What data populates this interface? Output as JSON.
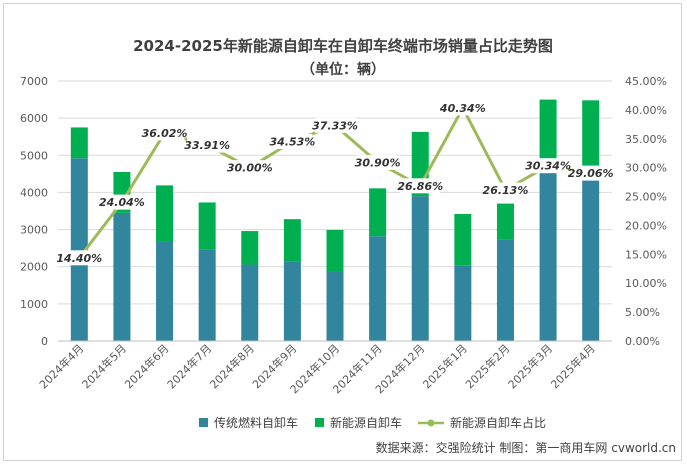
{
  "colors": {
    "traditional": "#31859c",
    "new_energy": "#00b050",
    "share_line": "#9bbb59",
    "grid": "#d9d9d9"
  },
  "chart_data": {
    "type": "bar",
    "stacked": true,
    "title": "2024-2025年新能源自卸车在自卸车终端市场销量占比走势图",
    "subtitle": "（单位：辆）",
    "categories": [
      "2024年4月",
      "2024年5月",
      "2024年6月",
      "2024年7月",
      "2024年8月",
      "2024年9月",
      "2024年10月",
      "2024年11月",
      "2024年12月",
      "2025年1月",
      "2025年2月",
      "2025年3月",
      "2025年4月"
    ],
    "series": [
      {
        "name": "传统燃料自卸车",
        "axis": "left",
        "values": [
          4920,
          3450,
          2680,
          2470,
          2060,
          2150,
          1870,
          2820,
          3900,
          2040,
          2730,
          4510,
          4570
        ]
      },
      {
        "name": "新能源自卸车",
        "axis": "left",
        "values": [
          830,
          1100,
          1510,
          1260,
          900,
          1130,
          1120,
          1290,
          1730,
          1380,
          970,
          1990,
          1910
        ]
      },
      {
        "name": "新能源自卸车占比",
        "axis": "right",
        "type": "line",
        "values": [
          14.4,
          24.04,
          36.02,
          33.91,
          30.0,
          34.53,
          37.33,
          30.9,
          26.86,
          40.34,
          26.13,
          30.34,
          29.06
        ]
      }
    ],
    "share_labels": [
      "14.40%",
      "24.04%",
      "36.02%",
      "33.91%",
      "30.00%",
      "34.53%",
      "37.33%",
      "30.90%",
      "26.86%",
      "40.34%",
      "26.13%",
      "30.34%",
      "29.06%"
    ],
    "left_axis": {
      "min": 0,
      "max": 7000,
      "step": 1000,
      "ticks": [
        "0",
        "1000",
        "2000",
        "3000",
        "4000",
        "5000",
        "6000",
        "7000"
      ]
    },
    "right_axis": {
      "min": 0,
      "max": 45,
      "step": 5,
      "ticks": [
        "0.00%",
        "5.00%",
        "10.00%",
        "15.00%",
        "20.00%",
        "25.00%",
        "30.00%",
        "35.00%",
        "40.00%",
        "45.00%"
      ]
    },
    "grid": true,
    "legend_position": "bottom",
    "source": "数据来源：交强险统计  制图：第一商用车网 cvworld.cn"
  }
}
